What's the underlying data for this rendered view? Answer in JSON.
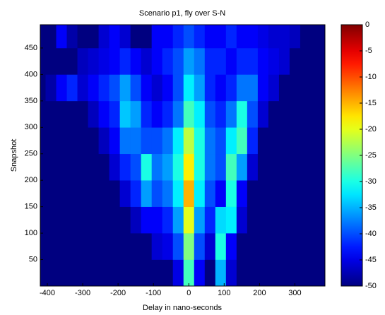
{
  "chart_data": {
    "type": "heatmap",
    "title": "Scenario p1, fly over S-N",
    "xlabel": "Delay in nano-seconds",
    "ylabel": "Snapshot",
    "colormap": "jet",
    "x": [
      -390,
      -360,
      -330,
      -300,
      -270,
      -240,
      -210,
      -180,
      -150,
      -120,
      -90,
      -60,
      -30,
      0,
      30,
      60,
      90,
      120,
      150,
      180,
      210,
      240,
      270,
      300,
      330,
      360,
      390
    ],
    "y": [
      25,
      75,
      125,
      175,
      225,
      275,
      325,
      375,
      425,
      475
    ],
    "z": [
      [
        -50,
        -50,
        -50,
        -50,
        -50,
        -50,
        -50,
        -50,
        -50,
        -50,
        -50,
        -50,
        -45,
        -28,
        -44,
        -50,
        -35,
        -46,
        -50,
        -50,
        -50,
        -50,
        -50,
        -50,
        -50,
        -50,
        -50
      ],
      [
        -50,
        -50,
        -50,
        -50,
        -50,
        -50,
        -50,
        -50,
        -50,
        -50,
        -46,
        -45,
        -40,
        -25,
        -40,
        -46,
        -30,
        -44,
        -50,
        -50,
        -50,
        -50,
        -50,
        -50,
        -50,
        -50,
        -50
      ],
      [
        -50,
        -50,
        -50,
        -50,
        -50,
        -50,
        -50,
        -50,
        -47,
        -44,
        -44,
        -42,
        -36,
        -20,
        -36,
        -42,
        -33,
        -32,
        -46,
        -50,
        -50,
        -50,
        -50,
        -50,
        -50,
        -50,
        -50
      ],
      [
        -50,
        -50,
        -50,
        -50,
        -50,
        -50,
        -50,
        -46,
        -42,
        -36,
        -40,
        -38,
        -32,
        -15,
        -32,
        -40,
        -44,
        -30,
        -44,
        -50,
        -50,
        -50,
        -50,
        -50,
        -50,
        -50,
        -50
      ],
      [
        -50,
        -50,
        -50,
        -50,
        -50,
        -50,
        -46,
        -42,
        -40,
        -30,
        -38,
        -36,
        -30,
        -18,
        -30,
        -38,
        -40,
        -28,
        -36,
        -46,
        -50,
        -50,
        -50,
        -50,
        -50,
        -50,
        -50
      ],
      [
        -50,
        -50,
        -50,
        -50,
        -50,
        -47,
        -44,
        -38,
        -38,
        -40,
        -40,
        -38,
        -32,
        -22,
        -30,
        -38,
        -40,
        -32,
        -28,
        -42,
        -50,
        -50,
        -50,
        -50,
        -50,
        -50,
        -50
      ],
      [
        -50,
        -50,
        -50,
        -50,
        -47,
        -44,
        -42,
        -34,
        -36,
        -42,
        -44,
        -42,
        -38,
        -28,
        -32,
        -40,
        -42,
        -38,
        -30,
        -40,
        -46,
        -50,
        -50,
        -50,
        -50,
        -50,
        -50
      ],
      [
        -48,
        -44,
        -42,
        -46,
        -44,
        -42,
        -40,
        -36,
        -40,
        -44,
        -46,
        -44,
        -40,
        -32,
        -36,
        -42,
        -44,
        -42,
        -38,
        -38,
        -44,
        -46,
        -50,
        -50,
        -50,
        -50,
        -50
      ],
      [
        -50,
        -50,
        -50,
        -47,
        -46,
        -45,
        -44,
        -42,
        -44,
        -46,
        -44,
        -42,
        -40,
        -36,
        -38,
        -42,
        -42,
        -44,
        -42,
        -42,
        -44,
        -45,
        -46,
        -50,
        -50,
        -50,
        -50
      ],
      [
        -50,
        -44,
        -48,
        -50,
        -50,
        -46,
        -44,
        -46,
        -50,
        -50,
        -44,
        -44,
        -42,
        -40,
        -42,
        -44,
        -44,
        -42,
        -44,
        -44,
        -45,
        -46,
        -46,
        -47,
        -50,
        -50,
        -50
      ]
    ],
    "xlim": [
      -420,
      385
    ],
    "ylim": [
      0,
      494
    ],
    "xticks": [
      -400,
      -300,
      -200,
      -100,
      0,
      100,
      200,
      300
    ],
    "yticks": [
      50,
      100,
      150,
      200,
      250,
      300,
      350,
      400,
      450
    ],
    "colorbar": {
      "lim": [
        -50,
        0
      ],
      "ticks": [
        0,
        -5,
        -10,
        -15,
        -20,
        -25,
        -30,
        -35,
        -40,
        -45,
        -50
      ]
    }
  }
}
